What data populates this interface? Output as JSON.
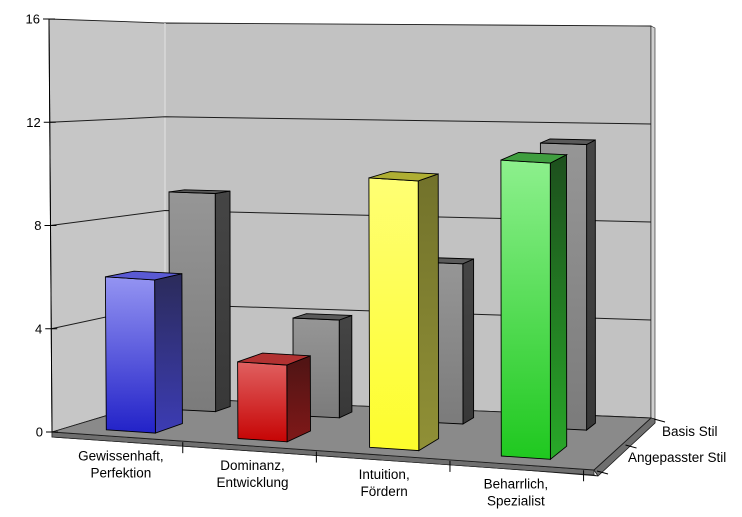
{
  "chart_data": {
    "type": "bar",
    "projection": "3d-column",
    "title": "",
    "categories": [
      [
        "Gewissenhaft,",
        "Perfektion"
      ],
      [
        "Dominanz,",
        "Entwicklung"
      ],
      [
        "Intuition,",
        "Fördern"
      ],
      [
        "Beharrlich,",
        "Spezialist"
      ]
    ],
    "series": [
      {
        "name": "Basis Stil",
        "depth": "back",
        "values": [
          9,
          4,
          6.5,
          11.5
        ],
        "palette": [
          {
            "id": "gray",
            "front": [
              "#969696",
              "#7b7b7b"
            ],
            "side": [
              "#454545",
              "#383838"
            ],
            "top": "#5a5a5a"
          },
          {
            "id": "gray",
            "front": [
              "#969696",
              "#7b7b7b"
            ],
            "side": [
              "#454545",
              "#383838"
            ],
            "top": "#5a5a5a"
          },
          {
            "id": "gray",
            "front": [
              "#969696",
              "#7b7b7b"
            ],
            "side": [
              "#454545",
              "#383838"
            ],
            "top": "#5a5a5a"
          },
          {
            "id": "gray",
            "front": [
              "#969696",
              "#7b7b7b"
            ],
            "side": [
              "#454545",
              "#383838"
            ],
            "top": "#5a5a5a"
          }
        ]
      },
      {
        "name": "Angepasster Stil",
        "depth": "front",
        "values": [
          6,
          3,
          10.5,
          11.5
        ],
        "palette": [
          {
            "id": "blue",
            "front": [
              "#9494f2",
              "#2222c8"
            ],
            "side": [
              "#2b2b5a",
              "#3c3cb4"
            ],
            "top": "#5a5ad4"
          },
          {
            "id": "red",
            "front": [
              "#e06060",
              "#c60404"
            ],
            "side": [
              "#4e1414",
              "#801818"
            ],
            "top": "#b23232"
          },
          {
            "id": "yellow",
            "front": [
              "#ffff74",
              "#fdfd2c"
            ],
            "side": [
              "#72722b",
              "#909036"
            ],
            "top": "#aeae33"
          },
          {
            "id": "green",
            "front": [
              "#8df08d",
              "#1fc81f"
            ],
            "side": [
              "#1d4f1d",
              "#28a828"
            ],
            "top": "#3f9e3f"
          }
        ]
      }
    ],
    "ylim": [
      0,
      16
    ],
    "ytick_step": 4,
    "ytick_labels": [
      "0",
      "4",
      "8",
      "12",
      "16"
    ],
    "grid": true,
    "legend_position": "series-axis-right",
    "colors": {
      "back_wall": "#c2c2c2",
      "side_wall": "#c6c6c6",
      "wall_corner_line": "#dcdcdc",
      "wall_right_edge": "#cfcfcf",
      "floor": "#8a8a8a",
      "floor_side": "#6f6f6f",
      "gridline": "#1c1c1c",
      "outline": "#000000",
      "text": "#000000",
      "background": "#ffffff"
    }
  }
}
